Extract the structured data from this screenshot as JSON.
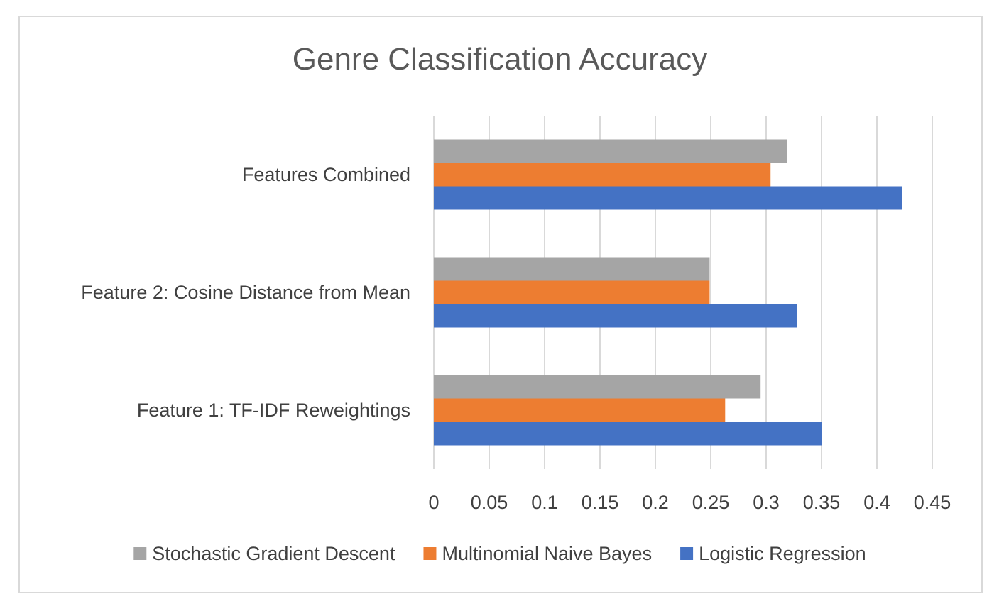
{
  "chart_data": {
    "type": "bar",
    "orientation": "horizontal",
    "title": "Genre Classification Accuracy",
    "xlabel": "",
    "ylabel": "",
    "categories": [
      "Feature 1: TF-IDF Reweightings",
      "Feature 2: Cosine Distance from Mean",
      "Features Combined"
    ],
    "series": [
      {
        "name": "Logistic Regression",
        "color": "#4472c4",
        "values": [
          0.35,
          0.328,
          0.423
        ]
      },
      {
        "name": "Multinomial Naive Bayes",
        "color": "#ed7d31",
        "values": [
          0.263,
          0.249,
          0.304
        ]
      },
      {
        "name": "Stochastic Gradient Descent",
        "color": "#a5a5a5",
        "values": [
          0.295,
          0.249,
          0.319
        ]
      }
    ],
    "legend_order": [
      "Stochastic Gradient Descent",
      "Multinomial Naive Bayes",
      "Logistic Regression"
    ],
    "xlim": [
      0,
      0.45
    ],
    "ticks": [
      "0",
      "0.05",
      "0.1",
      "0.15",
      "0.2",
      "0.25",
      "0.3",
      "0.35",
      "0.4",
      "0.45"
    ],
    "grid": true,
    "legend_position": "bottom"
  }
}
